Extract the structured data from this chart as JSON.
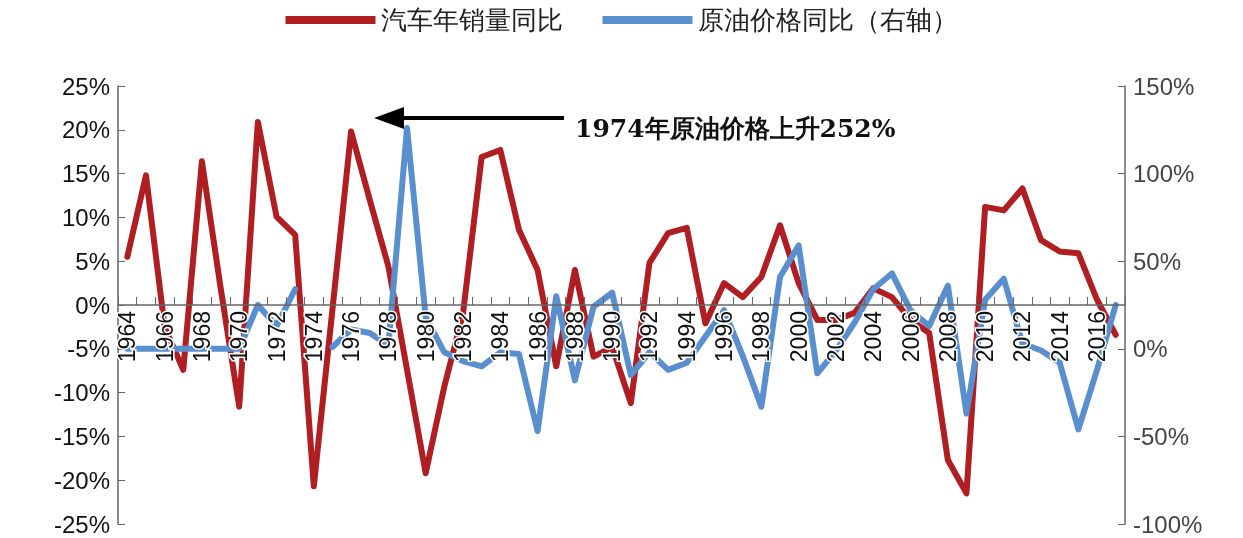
{
  "chart_data": {
    "type": "line",
    "categories": [
      "1964",
      null,
      "1966",
      null,
      "1968",
      null,
      "1970",
      null,
      "1972",
      null,
      "1974",
      null,
      "1976",
      null,
      "1978",
      null,
      "1980",
      null,
      "1982",
      null,
      "1984",
      null,
      "1986",
      null,
      "1988",
      null,
      "1990",
      null,
      "1992",
      null,
      "1994",
      null,
      "1996",
      null,
      "1998",
      null,
      "2000",
      null,
      "2002",
      null,
      "2004",
      null,
      "2006",
      null,
      "2008",
      null,
      "2010",
      null,
      "2012",
      null,
      "2014",
      null,
      "2016",
      null
    ],
    "series": [
      {
        "name": "汽车年销量同比",
        "color": "#b01e22",
        "values": [
          5.5,
          14.8,
          -2.5,
          -7.4,
          16.4,
          2.0,
          -11.6,
          20.9,
          10.1,
          8.0,
          -20.7,
          -0.5,
          19.8,
          12.0,
          4.4,
          -7.4,
          -19.2,
          -9.3,
          -1.0,
          16.9,
          17.7,
          8.6,
          4.0,
          -7.0,
          4.0,
          -5.9,
          -4.8,
          -11.2,
          4.8,
          8.2,
          8.8,
          -2.1,
          2.5,
          0.9,
          3.2,
          9.1,
          2.5,
          -1.7,
          -1.7,
          -0.9,
          1.9,
          0.9,
          -1.7,
          -3.2,
          -17.7,
          -21.5,
          11.2,
          10.8,
          13.3,
          7.4,
          6.1,
          5.9,
          0.6,
          -3.4
        ]
      },
      {
        "name": "原油价格同比（右轴）",
        "color": "#5a8fcf",
        "axis": "y2",
        "values": [
          0,
          0,
          0,
          0,
          0,
          0,
          0,
          25,
          13,
          34,
          null,
          1,
          11,
          9,
          2,
          126,
          18,
          -2,
          -7,
          -10,
          -2,
          -3,
          -47,
          30,
          -18,
          24,
          32,
          -15,
          -2,
          -12,
          -8,
          7,
          22,
          -4,
          -33,
          41,
          59,
          -14,
          -1,
          15,
          34,
          43,
          22,
          13,
          36,
          -37,
          28,
          40,
          3,
          -1,
          -8,
          -46,
          -12,
          25
        ]
      }
    ],
    "ylim": [
      -25,
      25
    ],
    "yticks": [
      {
        "value": -25,
        "label": "-25%"
      },
      {
        "value": -20,
        "label": "-20%"
      },
      {
        "value": -15,
        "label": "-15%"
      },
      {
        "value": -10,
        "label": "-10%"
      },
      {
        "value": -5,
        "label": "-5%"
      },
      {
        "value": 0,
        "label": "0%"
      },
      {
        "value": 5,
        "label": "5%"
      },
      {
        "value": 10,
        "label": "10%"
      },
      {
        "value": 15,
        "label": "15%"
      },
      {
        "value": 20,
        "label": "20%"
      },
      {
        "value": 25,
        "label": "25%"
      }
    ],
    "y2lim": [
      -100,
      150
    ],
    "y2ticks": [
      {
        "value": -100,
        "label": "-100%"
      },
      {
        "value": -50,
        "label": "-50%"
      },
      {
        "value": 0,
        "label": "0%"
      },
      {
        "value": 50,
        "label": "50%"
      },
      {
        "value": 100,
        "label": "100%"
      },
      {
        "value": 150,
        "label": "150%"
      }
    ],
    "annotations": [
      "1974年原油价格上升252%"
    ],
    "legend": "top",
    "grid": false,
    "marker": "none",
    "line_style": "solid"
  }
}
